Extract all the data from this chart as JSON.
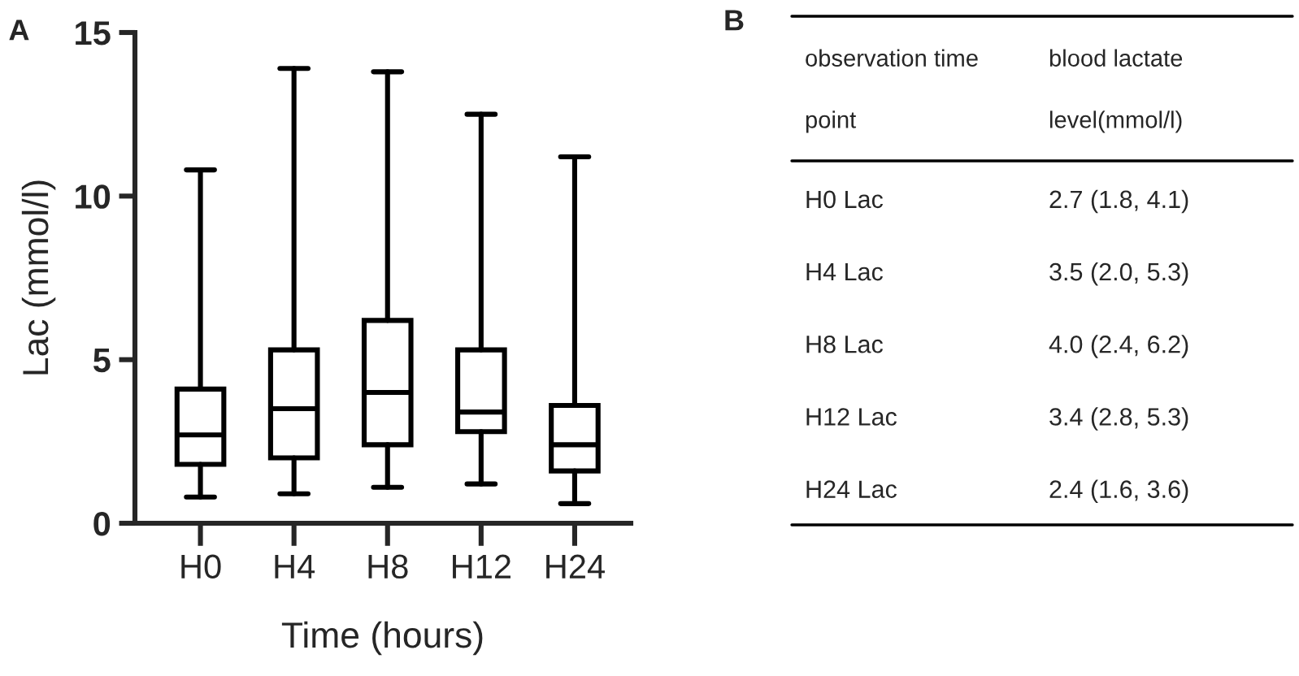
{
  "chart_data": [
    {
      "type": "box",
      "title": "A",
      "xlabel": "Time (hours)",
      "ylabel": "Lac (mmol/l)",
      "categories": [
        "H0",
        "H4",
        "H8",
        "H12",
        "H24"
      ],
      "boxes": [
        {
          "low": 0.8,
          "q1": 1.8,
          "median": 2.7,
          "q3": 4.1,
          "high": 10.8
        },
        {
          "low": 0.9,
          "q1": 2.0,
          "median": 3.5,
          "q3": 5.3,
          "high": 13.9
        },
        {
          "low": 1.1,
          "q1": 2.4,
          "median": 4.0,
          "q3": 6.2,
          "high": 13.8
        },
        {
          "low": 1.2,
          "q1": 2.8,
          "median": 3.4,
          "q3": 5.3,
          "high": 12.5
        },
        {
          "low": 0.6,
          "q1": 1.6,
          "median": 2.4,
          "q3": 3.6,
          "high": 11.2
        }
      ],
      "ylim": [
        0,
        15
      ],
      "yticks": [
        0,
        5,
        10,
        15
      ],
      "grid": false
    },
    {
      "type": "other",
      "title": "B",
      "annotations": [
        "observation time\npoint",
        "blood lactate\nlevel(mmol/l)",
        "H0 Lac",
        "2.7 (1.8, 4.1)",
        "H4 Lac",
        "3.5 (2.0, 5.3)",
        "H8 Lac",
        "4.0 (2.4, 6.2)",
        "H12 Lac",
        "3.4 (2.8, 5.3)",
        "H24 Lac",
        "2.4 (1.6, 3.6)"
      ]
    }
  ]
}
